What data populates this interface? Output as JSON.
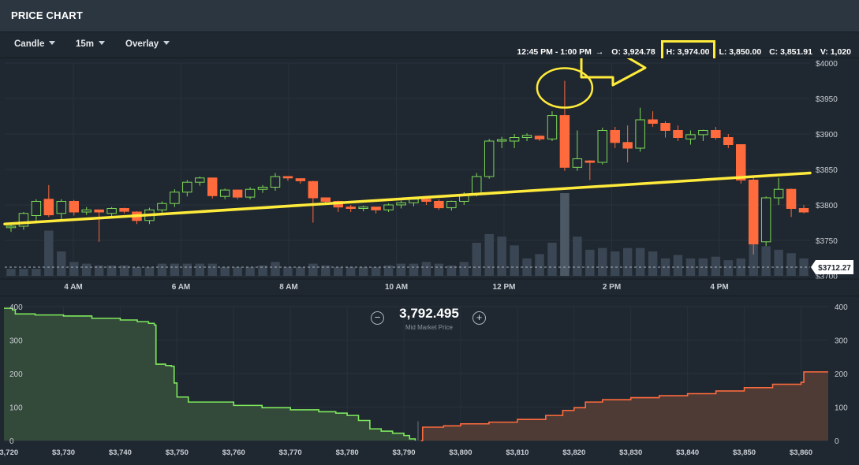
{
  "header": {
    "title": "PRICE CHART"
  },
  "toolbar": {
    "candle_label": "Candle",
    "interval_label": "15m",
    "overlay_label": "Overlay",
    "time_range": "12:45 PM - 1:00 PM",
    "arrow": "→",
    "open": "O: 3,924.78",
    "high": "H: 3,974.00",
    "low": "L: 3,850.00",
    "close": "C: 3,851.91",
    "volume": "V: 1,020"
  },
  "colors": {
    "bg": "#1f2730",
    "panel": "#2b3640",
    "up": "#7ed957",
    "down": "#ff6b3d",
    "annotation": "#ffeb3b",
    "volume": "#3a4653",
    "volume_highlight": "#4c5965"
  },
  "depth": {
    "mid_price": "3,792.495",
    "mid_label": "Mid Market Price",
    "zoom_out": "−",
    "zoom_in": "+"
  },
  "chart_data": [
    {
      "type": "candlestick",
      "title": "",
      "x_ticks": [
        "4 AM",
        "6 AM",
        "8 AM",
        "10 AM",
        "12 PM",
        "2 PM",
        "4 PM"
      ],
      "y_ticks": [
        "$4000",
        "$3950",
        "$3900",
        "$3850",
        "$3800",
        "$3750",
        "$3700"
      ],
      "ylim": [
        3700,
        4000
      ],
      "last_price_label": "$3712.27",
      "last_price": 3712.27,
      "grid": true,
      "candles": [
        [
          3768,
          3772,
          3762,
          3770
        ],
        [
          3770,
          3790,
          3765,
          3788
        ],
        [
          3785,
          3808,
          3778,
          3805
        ],
        [
          3808,
          3828,
          3783,
          3786
        ],
        [
          3788,
          3808,
          3780,
          3805
        ],
        [
          3805,
          3807,
          3785,
          3790
        ],
        [
          3790,
          3797,
          3786,
          3793
        ],
        [
          3793,
          3792,
          3748,
          3790
        ],
        [
          3788,
          3797,
          3782,
          3795
        ],
        [
          3795,
          3796,
          3788,
          3791
        ],
        [
          3790,
          3791,
          3773,
          3778
        ],
        [
          3778,
          3796,
          3773,
          3793
        ],
        [
          3793,
          3805,
          3788,
          3802
        ],
        [
          3802,
          3822,
          3797,
          3818
        ],
        [
          3818,
          3835,
          3812,
          3832
        ],
        [
          3832,
          3840,
          3827,
          3838
        ],
        [
          3838,
          3838,
          3809,
          3813
        ],
        [
          3812,
          3823,
          3808,
          3821
        ],
        [
          3821,
          3821,
          3808,
          3811
        ],
        [
          3811,
          3825,
          3808,
          3822
        ],
        [
          3822,
          3828,
          3817,
          3825
        ],
        [
          3825,
          3845,
          3820,
          3840
        ],
        [
          3840,
          3840,
          3834,
          3838
        ],
        [
          3837,
          3837,
          3830,
          3834
        ],
        [
          3833,
          3834,
          3775,
          3810
        ],
        [
          3810,
          3809,
          3800,
          3805
        ],
        [
          3805,
          3806,
          3790,
          3797
        ],
        [
          3797,
          3800,
          3790,
          3795
        ],
        [
          3795,
          3799,
          3791,
          3797
        ],
        [
          3797,
          3796,
          3788,
          3793
        ],
        [
          3793,
          3802,
          3790,
          3800
        ],
        [
          3800,
          3806,
          3795,
          3803
        ],
        [
          3803,
          3810,
          3798,
          3808
        ],
        [
          3808,
          3811,
          3800,
          3805
        ],
        [
          3805,
          3808,
          3793,
          3796
        ],
        [
          3796,
          3806,
          3792,
          3805
        ],
        [
          3805,
          3818,
          3800,
          3815
        ],
        [
          3815,
          3845,
          3812,
          3840
        ],
        [
          3840,
          3893,
          3837,
          3890
        ],
        [
          3890,
          3896,
          3880,
          3892
        ],
        [
          3890,
          3900,
          3880,
          3895
        ],
        [
          3895,
          3901,
          3890,
          3898
        ],
        [
          3897,
          3898,
          3890,
          3893
        ],
        [
          3893,
          3932,
          3890,
          3926
        ],
        [
          3926,
          3975,
          3848,
          3853
        ],
        [
          3853,
          3905,
          3848,
          3865
        ],
        [
          3862,
          3863,
          3835,
          3860
        ],
        [
          3860,
          3909,
          3857,
          3905
        ],
        [
          3905,
          3910,
          3880,
          3888
        ],
        [
          3888,
          3912,
          3860,
          3880
        ],
        [
          3880,
          3937,
          3875,
          3920
        ],
        [
          3920,
          3932,
          3910,
          3915
        ],
        [
          3915,
          3918,
          3895,
          3905
        ],
        [
          3905,
          3912,
          3890,
          3895
        ],
        [
          3893,
          3905,
          3885,
          3899
        ],
        [
          3899,
          3906,
          3890,
          3905
        ],
        [
          3905,
          3910,
          3892,
          3895
        ],
        [
          3895,
          3900,
          3880,
          3885
        ],
        [
          3885,
          3885,
          3830,
          3835
        ],
        [
          3835,
          3842,
          3730,
          3745
        ],
        [
          3748,
          3812,
          3742,
          3810
        ],
        [
          3810,
          3838,
          3800,
          3822
        ],
        [
          3822,
          3823,
          3783,
          3795
        ],
        [
          3795,
          3800,
          3788,
          3790
        ]
      ],
      "volume": [
        8,
        8,
        8,
        52,
        28,
        16,
        14,
        12,
        12,
        12,
        10,
        10,
        14,
        14,
        14,
        14,
        14,
        10,
        10,
        10,
        12,
        16,
        10,
        10,
        14,
        12,
        10,
        10,
        10,
        10,
        12,
        14,
        14,
        16,
        14,
        12,
        16,
        38,
        48,
        45,
        35,
        20,
        25,
        38,
        95,
        45,
        30,
        32,
        28,
        32,
        32,
        28,
        20,
        24,
        20,
        20,
        22,
        18,
        20,
        52,
        34,
        30,
        26,
        20
      ],
      "support_line": {
        "from": [
          0,
          3773
        ],
        "to": [
          64,
          3845
        ]
      },
      "annotations": [
        "circle around 12:45 PM high",
        "arrow pointing to high value",
        "box around H value"
      ]
    },
    {
      "type": "area",
      "title": "",
      "x_ticks": [
        "$3,720",
        "$3,730",
        "$3,740",
        "$3,750",
        "$3,760",
        "$3,770",
        "$3,780",
        "$3,790",
        "$3,800",
        "$3,810",
        "$3,820",
        "$3,830",
        "$3,840",
        "$3,850",
        "$3,860"
      ],
      "y_ticks": [
        "0",
        "100",
        "200",
        "300",
        "400"
      ],
      "xlim": [
        3719.5,
        3864.8
      ],
      "ylim": [
        0,
        400
      ],
      "mid_price": 3792.495,
      "series": [
        {
          "name": "bids",
          "values": [
            [
              3719.5,
              395
            ],
            [
              3721,
              390
            ],
            [
              3721.5,
              378
            ],
            [
              3725,
              375
            ],
            [
              3730,
              372
            ],
            [
              3735,
              365
            ],
            [
              3740,
              360
            ],
            [
              3743,
              355
            ],
            [
              3745,
              350
            ],
            [
              3746,
              345
            ],
            [
              3746.3,
              228
            ],
            [
              3748,
              224
            ],
            [
              3749,
              222
            ],
            [
              3749.5,
              172
            ],
            [
              3750,
              130
            ],
            [
              3752,
              115
            ],
            [
              3760,
              105
            ],
            [
              3765,
              98
            ],
            [
              3770,
              92
            ],
            [
              3775,
              86
            ],
            [
              3778,
              82
            ],
            [
              3780,
              75
            ],
            [
              3782,
              60
            ],
            [
              3784,
              35
            ],
            [
              3786,
              28
            ],
            [
              3788,
              22
            ],
            [
              3790,
              15
            ],
            [
              3791,
              5
            ],
            [
              3792,
              0
            ]
          ]
        },
        {
          "name": "asks",
          "values": [
            [
              3793,
              0
            ],
            [
              3793.3,
              40
            ],
            [
              3797,
              44
            ],
            [
              3800,
              50
            ],
            [
              3805,
              55
            ],
            [
              3810,
              63
            ],
            [
              3815,
              75
            ],
            [
              3818,
              90
            ],
            [
              3820,
              98
            ],
            [
              3822,
              115
            ],
            [
              3825,
              122
            ],
            [
              3830,
              128
            ],
            [
              3835,
              134
            ],
            [
              3840,
              140
            ],
            [
              3845,
              148
            ],
            [
              3850,
              158
            ],
            [
              3855,
              168
            ],
            [
              3860,
              174
            ],
            [
              3860.5,
              205
            ],
            [
              3864.8,
              205
            ]
          ]
        }
      ]
    }
  ]
}
